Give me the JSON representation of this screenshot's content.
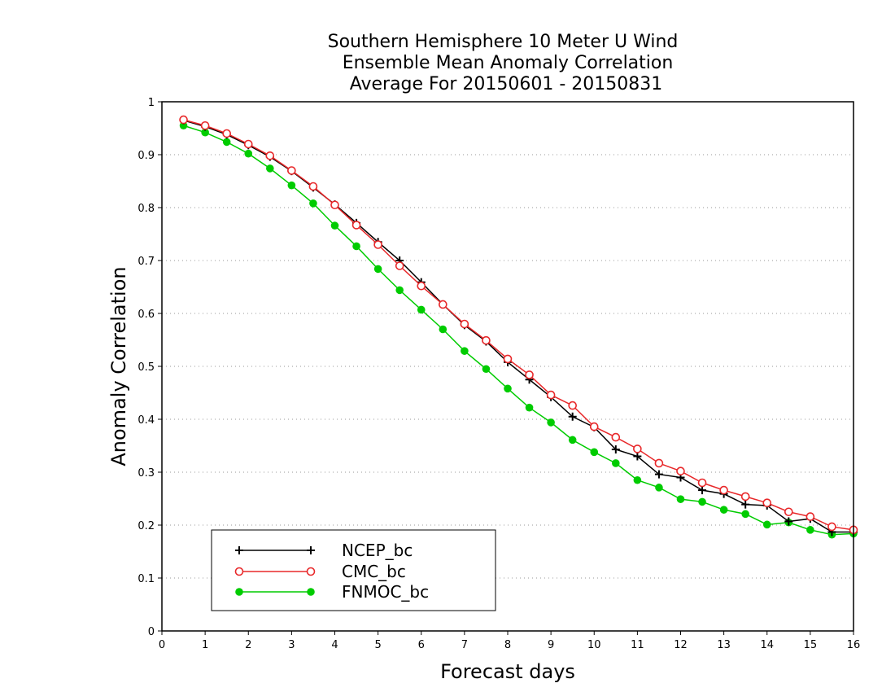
{
  "chart_data": {
    "type": "line",
    "title_lines": [
      "Southern Hemisphere 10 Meter U Wind",
      "Ensemble Mean Anomaly Correlation",
      "Average For 20150601 - 20150831"
    ],
    "xlabel": "Forecast days",
    "ylabel": "Anomaly Correlation",
    "xlim": [
      0,
      16
    ],
    "ylim": [
      0,
      1
    ],
    "x_ticks": [
      "0",
      "1",
      "2",
      "3",
      "4",
      "5",
      "6",
      "7",
      "8",
      "9",
      "10",
      "11",
      "12",
      "13",
      "14",
      "15",
      "16"
    ],
    "y_ticks": [
      "0",
      "0.1",
      "0.2",
      "0.3",
      "0.4",
      "0.5",
      "0.6",
      "0.7",
      "0.8",
      "0.9",
      "1"
    ],
    "grid": "horizontal dotted",
    "legend_position": "bottom-left",
    "x": [
      0.5,
      1,
      1.5,
      2,
      2.5,
      3,
      3.5,
      4,
      4.5,
      5,
      5.5,
      6,
      6.5,
      7,
      7.5,
      8,
      8.5,
      9,
      9.5,
      10,
      10.5,
      11,
      11.5,
      12,
      12.5,
      13,
      13.5,
      14,
      14.5,
      15,
      15.5,
      16
    ],
    "series": [
      {
        "name": "NCEP_bc",
        "color": "#000000",
        "marker": "plus",
        "values": [
          0.965,
          0.953,
          0.938,
          0.918,
          0.896,
          0.869,
          0.838,
          0.806,
          0.771,
          0.735,
          0.7,
          0.659,
          0.617,
          0.578,
          0.547,
          0.508,
          0.475,
          0.442,
          0.405,
          0.385,
          0.343,
          0.33,
          0.296,
          0.29,
          0.266,
          0.259,
          0.239,
          0.237,
          0.207,
          0.212,
          0.187,
          0.187
        ]
      },
      {
        "name": "CMC_bc",
        "color": "#e8282a",
        "marker": "open-circle",
        "values": [
          0.966,
          0.955,
          0.94,
          0.92,
          0.898,
          0.87,
          0.84,
          0.805,
          0.767,
          0.73,
          0.69,
          0.652,
          0.617,
          0.58,
          0.549,
          0.514,
          0.484,
          0.446,
          0.426,
          0.386,
          0.366,
          0.344,
          0.317,
          0.302,
          0.28,
          0.266,
          0.254,
          0.242,
          0.225,
          0.216,
          0.197,
          0.191
        ]
      },
      {
        "name": "FNMOC_bc",
        "color": "#00cc00",
        "marker": "filled-circle",
        "values": [
          0.955,
          0.942,
          0.924,
          0.902,
          0.874,
          0.842,
          0.808,
          0.766,
          0.727,
          0.684,
          0.644,
          0.607,
          0.57,
          0.529,
          0.495,
          0.458,
          0.422,
          0.394,
          0.361,
          0.338,
          0.317,
          0.285,
          0.271,
          0.249,
          0.244,
          0.229,
          0.221,
          0.201,
          0.205,
          0.191,
          0.182,
          0.184
        ]
      }
    ]
  }
}
